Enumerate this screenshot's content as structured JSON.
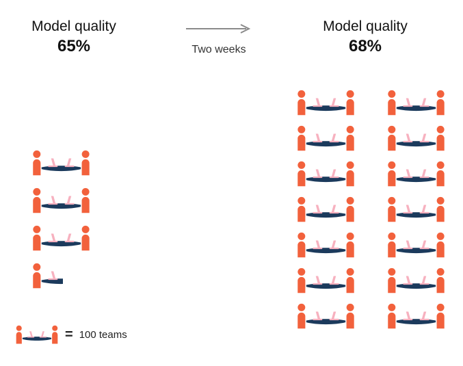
{
  "colors": {
    "orange": "#F2613C",
    "navy": "#1B3A5C",
    "pink": "#F7B1BF",
    "arrow": "#8A8A8A",
    "text": "#1A1A1A"
  },
  "chart_data": {
    "type": "pictogram",
    "unit_per_icon": 100,
    "unit_label": "teams",
    "arrow_label": "Two weeks",
    "legend": {
      "icon_count": 1,
      "equals": "=",
      "label": "100 teams"
    },
    "before": {
      "title": "Model quality",
      "value": "65%",
      "icon_count": 3.5,
      "teams": 350
    },
    "after": {
      "title": "Model quality",
      "value": "68%",
      "icon_count": 14,
      "teams": 1400
    },
    "layout": {
      "before_columns": 1,
      "after_columns": 2,
      "after_rows": 7,
      "legend_position": "bottom-left",
      "grid": "off"
    }
  }
}
